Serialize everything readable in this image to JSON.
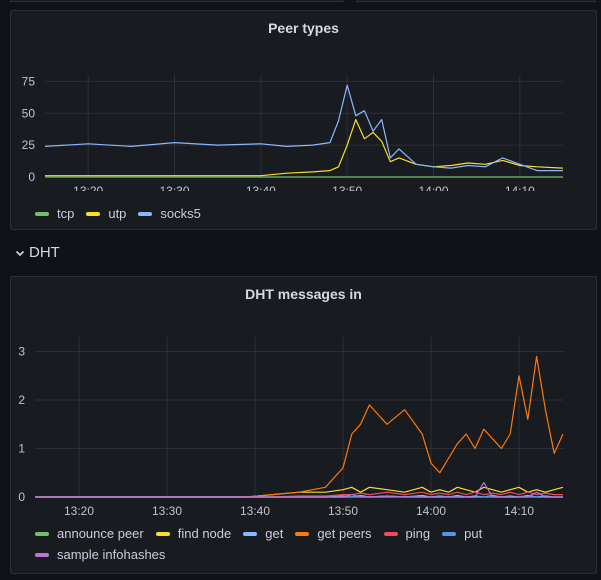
{
  "panels": {
    "peer_types": {
      "title": "Peer types",
      "legend": [
        {
          "label": "tcp",
          "color": "#73bf69"
        },
        {
          "label": "utp",
          "color": "#fade2a"
        },
        {
          "label": "socks5",
          "color": "#8ab8ff"
        }
      ]
    },
    "dht_section": {
      "label": "DHT",
      "icon": "chevron-down-icon"
    },
    "dht_messages": {
      "title": "DHT messages in",
      "legend": [
        {
          "label": "announce peer",
          "color": "#73bf69"
        },
        {
          "label": "find node",
          "color": "#fade2a"
        },
        {
          "label": "get",
          "color": "#8ab8ff"
        },
        {
          "label": "get peers",
          "color": "#ff780a"
        },
        {
          "label": "ping",
          "color": "#f2495c"
        },
        {
          "label": "put",
          "color": "#5794f2"
        },
        {
          "label": "sample infohashes",
          "color": "#b877d9"
        }
      ]
    }
  },
  "chart_data": [
    {
      "type": "line",
      "title": "Peer types",
      "xlabel": "",
      "ylabel": "",
      "x_range": [
        "13:15",
        "14:15"
      ],
      "x_ticks": [
        "13:20",
        "13:30",
        "13:40",
        "13:50",
        "14:00",
        "14:10"
      ],
      "y_ticks": [
        "0",
        "25",
        "50",
        "75"
      ],
      "ylim": [
        0,
        80
      ],
      "x": [
        "13:15",
        "13:20",
        "13:25",
        "13:30",
        "13:35",
        "13:40",
        "13:43",
        "13:46",
        "13:48",
        "13:49",
        "13:50",
        "13:51",
        "13:52",
        "13:53",
        "13:54",
        "13:55",
        "13:56",
        "13:58",
        "14:00",
        "14:02",
        "14:04",
        "14:06",
        "14:08",
        "14:10",
        "14:12",
        "14:15"
      ],
      "series": [
        {
          "name": "tcp",
          "values": [
            0,
            0,
            0,
            0,
            0,
            0,
            0,
            0,
            0,
            0,
            0,
            0,
            0,
            0,
            0,
            0,
            0,
            0,
            0,
            0,
            0,
            0,
            0,
            0,
            0,
            0
          ]
        },
        {
          "name": "utp",
          "values": [
            1,
            1,
            1,
            1,
            1,
            1,
            3,
            4,
            5,
            8,
            25,
            45,
            30,
            35,
            28,
            12,
            15,
            10,
            8,
            9,
            11,
            10,
            13,
            9,
            8,
            7
          ]
        },
        {
          "name": "socks5",
          "values": [
            24,
            26,
            24,
            27,
            25,
            26,
            24,
            25,
            27,
            44,
            72,
            48,
            52,
            36,
            45,
            15,
            22,
            10,
            8,
            7,
            9,
            8,
            15,
            10,
            5,
            5
          ]
        }
      ]
    },
    {
      "type": "line",
      "title": "DHT messages in",
      "xlabel": "",
      "ylabel": "",
      "x_range": [
        "13:15",
        "14:15"
      ],
      "x_ticks": [
        "13:20",
        "13:30",
        "13:40",
        "13:50",
        "14:00",
        "14:10"
      ],
      "y_ticks": [
        "0",
        "1",
        "2",
        "3"
      ],
      "ylim": [
        0,
        3.3
      ],
      "x": [
        "13:15",
        "13:20",
        "13:30",
        "13:39",
        "13:42",
        "13:45",
        "13:48",
        "13:50",
        "13:51",
        "13:52",
        "13:53",
        "13:55",
        "13:57",
        "13:59",
        "14:00",
        "14:01",
        "14:02",
        "14:03",
        "14:04",
        "14:05",
        "14:06",
        "14:07",
        "14:08",
        "14:09",
        "14:10",
        "14:11",
        "14:12",
        "14:13",
        "14:14",
        "14:15"
      ],
      "series": [
        {
          "name": "announce peer",
          "values": [
            0,
            0,
            0,
            0,
            0,
            0,
            0,
            0,
            0,
            0,
            0,
            0,
            0,
            0,
            0,
            0,
            0,
            0,
            0,
            0,
            0,
            0,
            0,
            0,
            0,
            0,
            0,
            0,
            0,
            0
          ]
        },
        {
          "name": "find node",
          "values": [
            0,
            0,
            0,
            0,
            0.05,
            0.1,
            0.1,
            0.15,
            0.2,
            0.1,
            0.2,
            0.15,
            0.1,
            0.2,
            0.1,
            0.15,
            0.1,
            0.2,
            0.15,
            0.1,
            0.2,
            0.15,
            0.1,
            0.15,
            0.2,
            0.1,
            0.15,
            0.1,
            0.15,
            0.2
          ]
        },
        {
          "name": "get",
          "values": [
            0,
            0,
            0,
            0,
            0,
            0,
            0,
            0.02,
            0,
            0.03,
            0,
            0.02,
            0,
            0.03,
            0,
            0.02,
            0,
            0.03,
            0,
            0.02,
            0,
            0.03,
            0,
            0.02,
            0,
            0.03,
            0,
            0.02,
            0,
            0
          ]
        },
        {
          "name": "get peers",
          "values": [
            0,
            0,
            0,
            0,
            0.05,
            0.1,
            0.2,
            0.6,
            1.3,
            1.5,
            1.9,
            1.5,
            1.8,
            1.3,
            0.7,
            0.5,
            0.8,
            1.1,
            1.3,
            1.0,
            1.4,
            1.2,
            1.0,
            1.3,
            2.5,
            1.6,
            2.9,
            1.8,
            0.9,
            1.3
          ]
        },
        {
          "name": "ping",
          "values": [
            0,
            0,
            0,
            0,
            0,
            0.02,
            0.02,
            0.05,
            0.05,
            0.08,
            0.05,
            0.1,
            0.05,
            0.1,
            0.05,
            0.08,
            0.05,
            0.1,
            0.05,
            0.1,
            0.05,
            0.08,
            0.05,
            0.1,
            0.05,
            0.1,
            0.05,
            0.08,
            0.05,
            0.05
          ]
        },
        {
          "name": "put",
          "values": [
            0,
            0,
            0,
            0,
            0,
            0,
            0,
            0,
            0,
            0.01,
            0,
            0,
            0.01,
            0,
            0,
            0,
            0.01,
            0,
            0,
            0,
            0,
            0.01,
            0,
            0,
            0,
            0.01,
            0,
            0,
            0,
            0
          ]
        },
        {
          "name": "sample infohashes",
          "values": [
            0,
            0,
            0,
            0,
            0,
            0,
            0,
            0,
            0.05,
            0,
            0,
            0.02,
            0,
            0,
            0,
            0,
            0,
            0,
            0,
            0,
            0.3,
            0,
            0,
            0,
            0,
            0,
            0.1,
            0,
            0,
            0
          ]
        }
      ]
    }
  ]
}
